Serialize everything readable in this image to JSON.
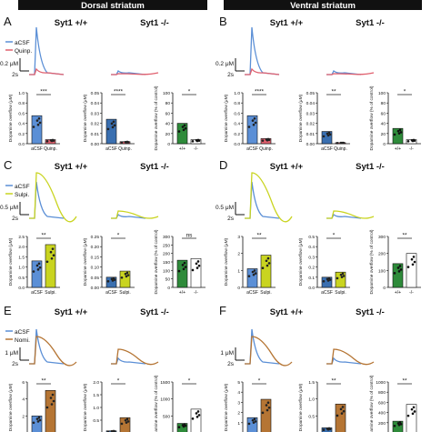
{
  "header": {
    "left_title": "Dorsal striatum",
    "right_title": "Ventral striatum"
  },
  "colors": {
    "header_bg": "#111111",
    "acsf": "#5b8fd6",
    "quinpirole": "#e0606e",
    "sulpiride": "#c9d420",
    "nomifensine": "#b57534",
    "ko_control": "#3a6fb0",
    "pink_dot": "#e06070",
    "green_bar": "#2e8b3a",
    "white_bar": "#ffffff"
  },
  "panels": [
    {
      "letter": "A",
      "left": {
        "wt": "Syt1 +/+",
        "ko": "Syt1 -/-"
      },
      "legend": [
        "aCSF",
        "Quinp."
      ],
      "scale": "0.2 μM",
      "time": "2s",
      "y_label": "Dopamine overflow (μM)",
      "pct_label": "Dopamine overflow (% of control)",
      "wt_stats": {
        "sig": "***",
        "cats": [
          "aCSF",
          "Quinp."
        ],
        "ticks": [
          "0.0",
          "0.2",
          "0.4",
          "0.6",
          "0.8",
          "1.0"
        ],
        "values": [
          0.55,
          0.08
        ]
      },
      "ko_stats": {
        "sig": "****",
        "cats": [
          "aCSF",
          "Quinp."
        ],
        "ticks": [
          "0.00",
          "0.01",
          "0.02",
          "0.03",
          "0.04",
          "0.05"
        ],
        "values": [
          0.024,
          0.002
        ]
      },
      "pct_stats": {
        "sig": "*",
        "cats": [
          "+/+",
          "-/-"
        ],
        "ticks": [
          "0",
          "20",
          "40",
          "60",
          "80",
          "100"
        ],
        "values": [
          40,
          8
        ]
      }
    },
    {
      "letter": "B",
      "left": {
        "wt": "Syt1 +/+",
        "ko": "Syt1 -/-"
      },
      "scale": "0.2 μM",
      "time": "2s",
      "wt_stats": {
        "sig": "****",
        "cats": [
          "aCSF",
          "Quinp."
        ],
        "ticks": [
          "0.0",
          "0.2",
          "0.4",
          "0.6",
          "0.8",
          "1.0"
        ],
        "values": [
          0.55,
          0.1
        ]
      },
      "ko_stats": {
        "sig": "**",
        "cats": [
          "aCSF",
          "Quinp."
        ],
        "ticks": [
          "0.00",
          "0.01",
          "0.02",
          "0.03",
          "0.04",
          "0.05"
        ],
        "values": [
          0.012,
          0.001
        ]
      },
      "pct_stats": {
        "sig": "*",
        "cats": [
          "+/+",
          "-/-"
        ],
        "ticks": [
          "0",
          "20",
          "40",
          "60",
          "80",
          "100"
        ],
        "values": [
          30,
          8
        ]
      }
    },
    {
      "letter": "C",
      "left": {
        "wt": "Syt1 +/+",
        "ko": "Syt1 -/-"
      },
      "legend": [
        "aCSF",
        "Sulpi."
      ],
      "scale": "0.5 μM",
      "time": "2s",
      "wt_stats": {
        "sig": "**",
        "cats": [
          "aCSF",
          "Sulpi."
        ],
        "ticks": [
          "0.0",
          "0.5",
          "1.0",
          "1.5",
          "2.0",
          "2.5"
        ],
        "values": [
          1.3,
          2.1
        ]
      },
      "ko_stats": {
        "sig": "*",
        "cats": [
          "aCSF",
          "Sulpi."
        ],
        "ticks": [
          "0.00",
          "0.05",
          "0.10",
          "0.15",
          "0.20",
          "0.25"
        ],
        "values": [
          0.05,
          0.08
        ]
      },
      "pct_stats": {
        "sig": "ns",
        "cats": [
          "+/+",
          "-/-"
        ],
        "ticks": [
          "0",
          "50",
          "100",
          "150",
          "200",
          "250",
          "300"
        ],
        "values": [
          160,
          170
        ]
      }
    },
    {
      "letter": "D",
      "left": {
        "wt": "Syt1 +/+",
        "ko": "Syt1 -/-"
      },
      "scale": "0.5 μM",
      "time": "2s",
      "wt_stats": {
        "sig": "**",
        "cats": [
          "aCSF",
          "Sulpi."
        ],
        "ticks": [
          "0",
          "1",
          "2",
          "3"
        ],
        "values": [
          1.1,
          1.9
        ]
      },
      "ko_stats": {
        "sig": "*",
        "cats": [
          "aCSF",
          "Sulpi."
        ],
        "ticks": [
          "0.0",
          "0.1",
          "0.2",
          "0.3",
          "0.4",
          "0.5"
        ],
        "values": [
          0.1,
          0.15
        ]
      },
      "pct_stats": {
        "sig": "**",
        "cats": [
          "+/+",
          "-/-"
        ],
        "ticks": [
          "0",
          "100",
          "200",
          "300"
        ],
        "values": [
          140,
          200
        ]
      }
    },
    {
      "letter": "E",
      "left": {
        "wt": "Syt1 +/+",
        "ko": "Syt1 -/-"
      },
      "legend": [
        "aCSF",
        "Nomi."
      ],
      "scale": "1 μM",
      "time": "2s",
      "wt_stats": {
        "sig": "**",
        "cats": [
          "aCSF",
          "Nomi."
        ],
        "ticks": [
          "0",
          "2",
          "4",
          "6"
        ],
        "values": [
          2.0,
          5.0
        ]
      },
      "ko_stats": {
        "sig": "*",
        "cats": [
          "aCSF",
          "Nomi."
        ],
        "ticks": [
          "0.0",
          "0.5",
          "1.0",
          "1.5",
          "2.0"
        ],
        "values": [
          0.08,
          0.6
        ]
      },
      "pct_stats": {
        "sig": "*",
        "cats": [
          "+/+",
          "-/-"
        ],
        "ticks": [
          "0",
          "500",
          "1000",
          "1500"
        ],
        "values": [
          280,
          700
        ]
      }
    },
    {
      "letter": "F",
      "left": {
        "wt": "Syt1 +/+",
        "ko": "Syt1 -/-"
      },
      "scale": "1 μM",
      "time": "2s",
      "wt_stats": {
        "sig": "*",
        "cats": [
          "aCSF",
          "Nomi."
        ],
        "ticks": [
          "0",
          "1",
          "2",
          "3",
          "4",
          "5"
        ],
        "values": [
          1.5,
          3.3
        ]
      },
      "ko_stats": {
        "sig": "**",
        "cats": [
          "aCSF",
          "Nomi."
        ],
        "ticks": [
          "0.0",
          "0.5",
          "1.0",
          "1.5"
        ],
        "values": [
          0.15,
          0.85
        ]
      },
      "pct_stats": {
        "sig": "**",
        "cats": [
          "+/+",
          "-/-"
        ],
        "ticks": [
          "0",
          "200",
          "400",
          "600",
          "800",
          "1000"
        ],
        "values": [
          230,
          560
        ]
      }
    }
  ]
}
